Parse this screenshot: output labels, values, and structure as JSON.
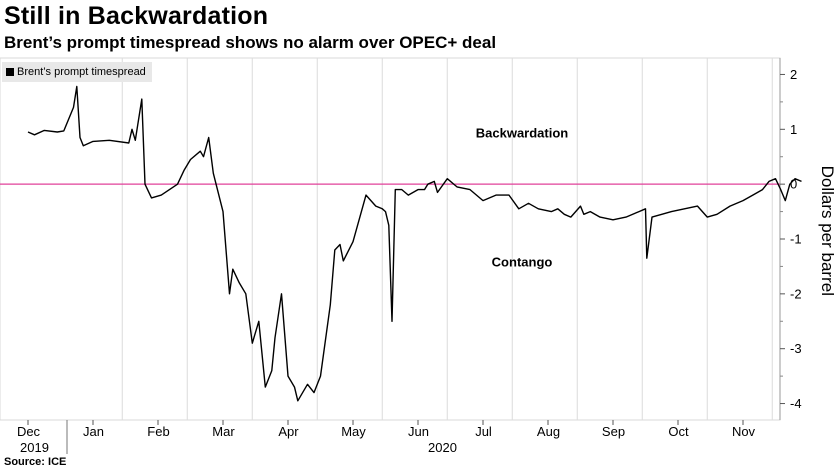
{
  "header": {
    "title": "Still in Backwardation",
    "subtitle": "Brent’s prompt timespread shows no alarm over OPEC+ deal"
  },
  "source": "Source: ICE",
  "chart_data": {
    "type": "line",
    "title": "Still in Backwardation",
    "subtitle": "Brent’s prompt timespread shows no alarm over OPEC+ deal",
    "ylabel": "Dollars per barrel",
    "y_side": "right",
    "ylim": [
      -4.3,
      2.3
    ],
    "yticks": [
      2,
      1,
      0,
      -1,
      -2,
      -3,
      -4
    ],
    "x_range_months": [
      0,
      12.3
    ],
    "xtick_labels": [
      "Dec",
      "Jan",
      "Feb",
      "Mar",
      "Apr",
      "May",
      "Jun",
      "Jul",
      "Aug",
      "Sep",
      "Oct",
      "Nov"
    ],
    "year_labels": [
      {
        "label": "2019",
        "month": 0
      },
      {
        "label": "2020",
        "month": 6.5
      }
    ],
    "grid": "vertical",
    "legend": "top-left",
    "zero_line_color": "#e0409a",
    "line_color": "#000000",
    "annotations": [
      {
        "text": "Backwardation",
        "month": 7.6,
        "y": 0.85
      },
      {
        "text": "Contango",
        "month": 7.6,
        "y": -1.5
      }
    ],
    "series": [
      {
        "name": "Brent’s prompt timespread",
        "points": [
          [
            0.0,
            0.95
          ],
          [
            0.1,
            0.9
          ],
          [
            0.25,
            0.98
          ],
          [
            0.45,
            0.95
          ],
          [
            0.55,
            0.97
          ],
          [
            0.7,
            1.4
          ],
          [
            0.75,
            1.78
          ],
          [
            0.8,
            0.85
          ],
          [
            0.85,
            0.7
          ],
          [
            1.0,
            0.78
          ],
          [
            1.25,
            0.8
          ],
          [
            1.55,
            0.75
          ],
          [
            1.6,
            1.0
          ],
          [
            1.65,
            0.8
          ],
          [
            1.75,
            1.55
          ],
          [
            1.8,
            0.0
          ],
          [
            1.9,
            -0.25
          ],
          [
            2.05,
            -0.2
          ],
          [
            2.3,
            0.0
          ],
          [
            2.4,
            0.25
          ],
          [
            2.5,
            0.45
          ],
          [
            2.65,
            0.6
          ],
          [
            2.7,
            0.5
          ],
          [
            2.78,
            0.85
          ],
          [
            2.85,
            0.2
          ],
          [
            3.0,
            -0.5
          ],
          [
            3.1,
            -2.0
          ],
          [
            3.15,
            -1.55
          ],
          [
            3.25,
            -1.8
          ],
          [
            3.35,
            -2.0
          ],
          [
            3.45,
            -2.9
          ],
          [
            3.55,
            -2.5
          ],
          [
            3.65,
            -3.7
          ],
          [
            3.75,
            -3.4
          ],
          [
            3.8,
            -2.8
          ],
          [
            3.9,
            -2.0
          ],
          [
            4.0,
            -3.5
          ],
          [
            4.1,
            -3.7
          ],
          [
            4.15,
            -3.95
          ],
          [
            4.3,
            -3.65
          ],
          [
            4.4,
            -3.8
          ],
          [
            4.5,
            -3.5
          ],
          [
            4.65,
            -2.2
          ],
          [
            4.72,
            -1.2
          ],
          [
            4.8,
            -1.1
          ],
          [
            4.85,
            -1.4
          ],
          [
            5.0,
            -1.05
          ],
          [
            5.2,
            -0.2
          ],
          [
            5.35,
            -0.4
          ],
          [
            5.45,
            -0.45
          ],
          [
            5.5,
            -0.5
          ],
          [
            5.55,
            -0.75
          ],
          [
            5.6,
            -2.5
          ],
          [
            5.65,
            -0.1
          ],
          [
            5.75,
            -0.1
          ],
          [
            5.85,
            -0.2
          ],
          [
            6.0,
            -0.1
          ],
          [
            6.1,
            -0.1
          ],
          [
            6.15,
            0.0
          ],
          [
            6.25,
            0.05
          ],
          [
            6.3,
            -0.15
          ],
          [
            6.45,
            0.1
          ],
          [
            6.6,
            -0.05
          ],
          [
            6.8,
            -0.1
          ],
          [
            7.0,
            -0.3
          ],
          [
            7.2,
            -0.2
          ],
          [
            7.4,
            -0.2
          ],
          [
            7.55,
            -0.45
          ],
          [
            7.7,
            -0.35
          ],
          [
            7.85,
            -0.45
          ],
          [
            8.05,
            -0.5
          ],
          [
            8.15,
            -0.45
          ],
          [
            8.25,
            -0.55
          ],
          [
            8.35,
            -0.6
          ],
          [
            8.5,
            -0.4
          ],
          [
            8.55,
            -0.55
          ],
          [
            8.65,
            -0.5
          ],
          [
            8.8,
            -0.6
          ],
          [
            9.0,
            -0.65
          ],
          [
            9.2,
            -0.6
          ],
          [
            9.4,
            -0.5
          ],
          [
            9.5,
            -0.45
          ],
          [
            9.52,
            -1.35
          ],
          [
            9.6,
            -0.6
          ],
          [
            9.75,
            -0.55
          ],
          [
            9.9,
            -0.5
          ],
          [
            10.1,
            -0.45
          ],
          [
            10.3,
            -0.4
          ],
          [
            10.45,
            -0.6
          ],
          [
            10.6,
            -0.55
          ],
          [
            10.8,
            -0.4
          ],
          [
            11.0,
            -0.3
          ],
          [
            11.15,
            -0.2
          ],
          [
            11.3,
            -0.1
          ],
          [
            11.4,
            0.05
          ],
          [
            11.5,
            0.1
          ],
          [
            11.58,
            -0.1
          ],
          [
            11.65,
            -0.3
          ],
          [
            11.72,
            0.0
          ],
          [
            11.8,
            0.1
          ],
          [
            11.9,
            0.05
          ]
        ]
      }
    ]
  }
}
